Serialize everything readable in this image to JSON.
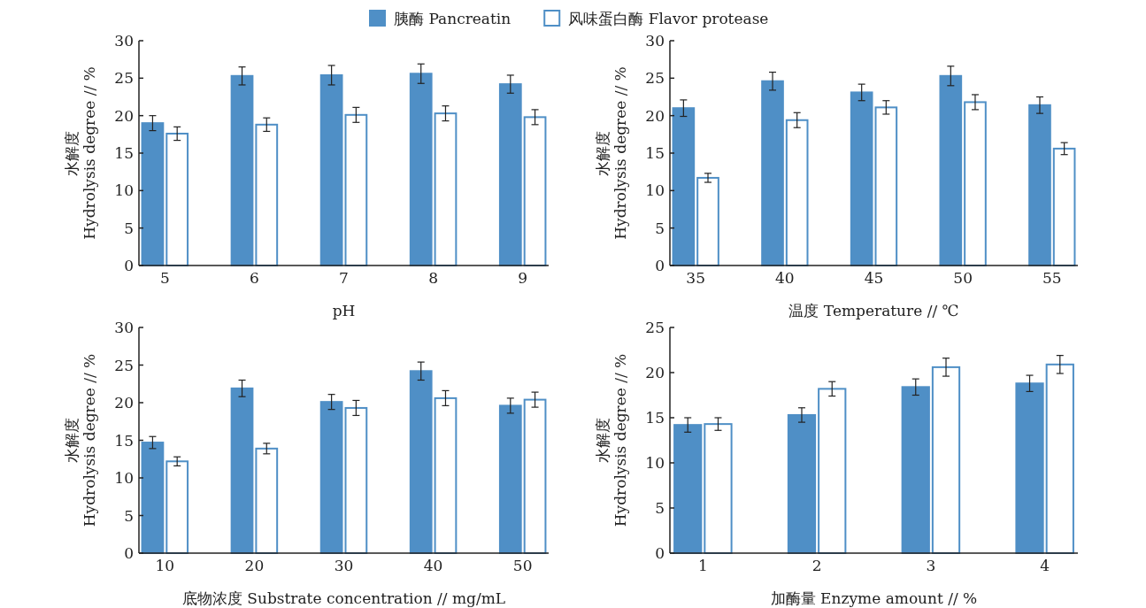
{
  "chart_data": [
    {
      "type": "bar",
      "xlabel": "pH",
      "ylabel": "水解度\nHydrolysis degree // %",
      "categories": [
        "5",
        "6",
        "7",
        "8",
        "9"
      ],
      "ylim": [
        0,
        30
      ],
      "yticks": [
        0,
        5,
        10,
        15,
        20,
        25,
        30
      ],
      "legend": "top",
      "grid": false,
      "series": [
        {
          "name": "胰酶 Pancreatin",
          "color": "#4f8fc6",
          "values": [
            19.0,
            25.3,
            25.4,
            25.6,
            24.2
          ],
          "errors": [
            1.0,
            1.2,
            1.3,
            1.3,
            1.2
          ]
        },
        {
          "name": "风味蛋白酶 Flavor protease",
          "color": "#ffffff",
          "values": [
            17.6,
            18.8,
            20.1,
            20.3,
            19.8
          ],
          "errors": [
            0.9,
            0.9,
            1.0,
            1.0,
            1.0
          ]
        }
      ]
    },
    {
      "type": "bar",
      "xlabel": "温度 Temperature // ℃",
      "ylabel": "水解度\nHydrolysis degree // %",
      "categories": [
        "35",
        "40",
        "45",
        "50",
        "55"
      ],
      "ylim": [
        0,
        30
      ],
      "yticks": [
        0,
        5,
        10,
        15,
        20,
        25,
        30
      ],
      "grid": false,
      "series": [
        {
          "color": "#4f8fc6",
          "values": [
            21.0,
            24.6,
            23.1,
            25.3,
            21.4
          ],
          "errors": [
            1.1,
            1.2,
            1.1,
            1.3,
            1.1
          ]
        },
        {
          "color": "#ffffff",
          "values": [
            11.7,
            19.4,
            21.1,
            21.8,
            15.6
          ],
          "errors": [
            0.6,
            1.0,
            0.9,
            1.0,
            0.8
          ]
        }
      ]
    },
    {
      "type": "bar",
      "xlabel": "底物浓度 Substrate concentration // mg/mL",
      "ylabel": "水解度\nHydrolysis degree // %",
      "categories": [
        "10",
        "20",
        "30",
        "40",
        "50"
      ],
      "ylim": [
        0,
        30
      ],
      "yticks": [
        0,
        5,
        10,
        15,
        20,
        25,
        30
      ],
      "grid": false,
      "series": [
        {
          "color": "#4f8fc6",
          "values": [
            14.7,
            21.9,
            20.1,
            24.2,
            19.6
          ],
          "errors": [
            0.8,
            1.1,
            1.0,
            1.2,
            1.0
          ]
        },
        {
          "color": "#ffffff",
          "values": [
            12.2,
            13.9,
            19.3,
            20.6,
            20.4
          ],
          "errors": [
            0.6,
            0.7,
            1.0,
            1.0,
            1.0
          ]
        }
      ]
    },
    {
      "type": "bar",
      "xlabel": "加酶量 Enzyme amount // %",
      "ylabel": "水解度\nHydrolysis degree // %",
      "categories": [
        "1",
        "2",
        "3",
        "4"
      ],
      "ylim": [
        0,
        25
      ],
      "yticks": [
        0,
        5,
        10,
        15,
        20,
        25
      ],
      "grid": false,
      "series": [
        {
          "color": "#4f8fc6",
          "values": [
            14.2,
            15.3,
            18.4,
            18.8
          ],
          "errors": [
            0.8,
            0.8,
            0.9,
            0.9
          ]
        },
        {
          "color": "#ffffff",
          "values": [
            14.3,
            18.2,
            20.6,
            20.9
          ],
          "errors": [
            0.7,
            0.8,
            1.0,
            1.0
          ]
        }
      ]
    }
  ]
}
